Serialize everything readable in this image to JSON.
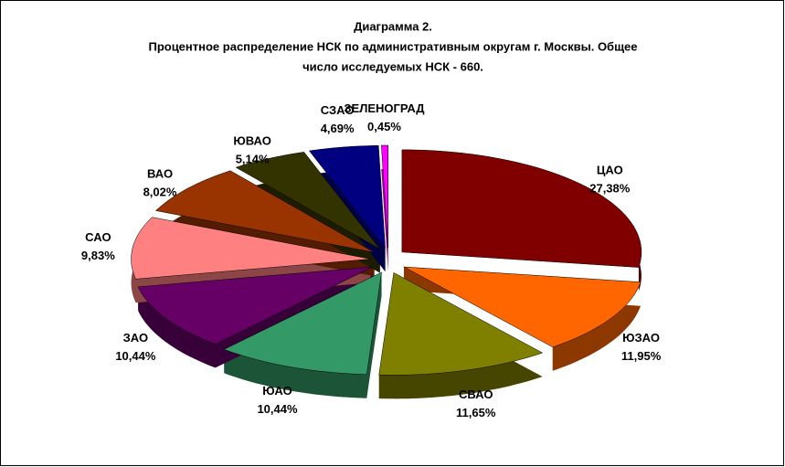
{
  "chart_data": {
    "type": "pie",
    "title": [
      "Диаграмма 2.",
      "Процентное распределение НСК по административным округам г. Москвы. Общее",
      "число исследуемых НСК - 660."
    ],
    "categories": [
      "ЦАО",
      "ЮЗАО",
      "СВАО",
      "ЮАО",
      "ЗАО",
      "САО",
      "ВАО",
      "ЮВАО",
      "СЗАО",
      "ЗЕЛЕНОГРАД"
    ],
    "values": [
      27.38,
      11.95,
      11.65,
      10.44,
      10.44,
      9.83,
      8.02,
      5.14,
      4.69,
      0.45
    ],
    "value_labels": [
      "27,38%",
      "11,95%",
      "11,65%",
      "10,44%",
      "10,44%",
      "9,83%",
      "8,02%",
      "5,14%",
      "4,69%",
      "0,45%"
    ],
    "colors": [
      "#800000",
      "#ff6600",
      "#808000",
      "#339966",
      "#660066",
      "#ff8080",
      "#993300",
      "#333300",
      "#000080",
      "#ff00ff"
    ]
  }
}
